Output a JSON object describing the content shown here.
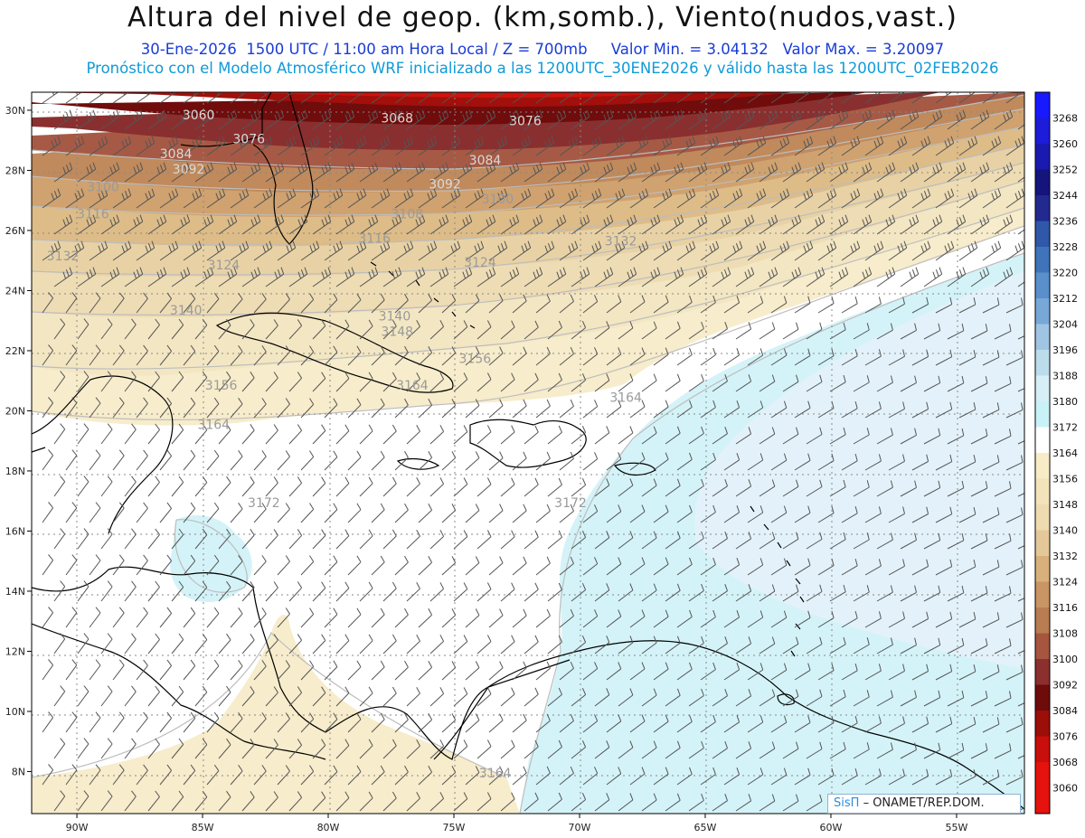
{
  "header": {
    "title": "Altura del nivel de geop. (km,somb.), Viento(nudos,vast.)",
    "line1_left": "30-Ene-2026  1500 UTC / 11:00 am Hora Local / Z = 700mb",
    "line1_min": "Valor Min. = 3.04132",
    "line1_max": "Valor Max. = 3.20097",
    "line2": "Pronóstico con el Modelo Atmosférico WRF inicializado a las 1200UTC_30ENE2026 y válido hasta las  1200UTC_02FEB2026"
  },
  "map": {
    "lon_ticks": [
      "90W",
      "85W",
      "80W",
      "75W",
      "70W",
      "65W",
      "60W",
      "55W"
    ],
    "lat_ticks": [
      "30N",
      "28N",
      "26N",
      "24N",
      "22N",
      "20N",
      "18N",
      "16N",
      "14N",
      "12N",
      "10N",
      "8N"
    ],
    "contour_labels": [
      {
        "text": "3060",
        "lon": -85.8,
        "lat": 29.7
      },
      {
        "text": "3068",
        "lon": -77.9,
        "lat": 29.6
      },
      {
        "text": "3076",
        "lon": -72.8,
        "lat": 29.5
      },
      {
        "text": "3076",
        "lon": -83.8,
        "lat": 28.9
      },
      {
        "text": "3084",
        "lon": -86.7,
        "lat": 28.4
      },
      {
        "text": "3084",
        "lon": -74.4,
        "lat": 28.2
      },
      {
        "text": "3092",
        "lon": -86.2,
        "lat": 27.9
      },
      {
        "text": "3092",
        "lon": -76.0,
        "lat": 27.4
      },
      {
        "text": "3100",
        "lon": -89.6,
        "lat": 27.3
      },
      {
        "text": "3100",
        "lon": -73.9,
        "lat": 26.9
      },
      {
        "text": "3108",
        "lon": -77.5,
        "lat": 26.4
      },
      {
        "text": "3116",
        "lon": -90.0,
        "lat": 26.4
      },
      {
        "text": "3116",
        "lon": -78.8,
        "lat": 25.6
      },
      {
        "text": "3132",
        "lon": -91.2,
        "lat": 25.0
      },
      {
        "text": "3124",
        "lon": -84.8,
        "lat": 24.7
      },
      {
        "text": "3124",
        "lon": -74.6,
        "lat": 24.8
      },
      {
        "text": "3132",
        "lon": -69.0,
        "lat": 25.5
      },
      {
        "text": "3140",
        "lon": -86.3,
        "lat": 23.2
      },
      {
        "text": "3140",
        "lon": -78.0,
        "lat": 23.0
      },
      {
        "text": "3148",
        "lon": -77.9,
        "lat": 22.5
      },
      {
        "text": "3156",
        "lon": -74.8,
        "lat": 21.6
      },
      {
        "text": "3156",
        "lon": -84.9,
        "lat": 20.7
      },
      {
        "text": "3164",
        "lon": -77.3,
        "lat": 20.7
      },
      {
        "text": "3164",
        "lon": -68.8,
        "lat": 20.3
      },
      {
        "text": "3164",
        "lon": -85.2,
        "lat": 19.4
      },
      {
        "text": "3172",
        "lon": -83.2,
        "lat": 16.8
      },
      {
        "text": "3172",
        "lon": -71.0,
        "lat": 16.8
      },
      {
        "text": "3164",
        "lon": -74.0,
        "lat": 7.8
      }
    ]
  },
  "colorbar": {
    "levels": [
      "3268",
      "3260",
      "3252",
      "3244",
      "3236",
      "3228",
      "3220",
      "3212",
      "3204",
      "3196",
      "3188",
      "3180",
      "3172",
      "3164",
      "3156",
      "3148",
      "3140",
      "3132",
      "3124",
      "3116",
      "3108",
      "3100",
      "3092",
      "3084",
      "3076",
      "3068",
      "3060"
    ],
    "colors": [
      "#1919ff",
      "#1c1cd9",
      "#1a1ab0",
      "#14147c",
      "#22298f",
      "#2f58a8",
      "#3f74bb",
      "#5a8fcb",
      "#78a8d7",
      "#9fc5e3",
      "#bcdcec",
      "#d6eef5",
      "#c8f2f7",
      "#ffffff",
      "#f7ecc6",
      "#f2e3ba",
      "#eedbb0",
      "#e4c89a",
      "#d8b07c",
      "#c99564",
      "#b97d52",
      "#a6553f",
      "#8c2f2f",
      "#6e0b0b",
      "#9c0e08",
      "#c80f0b",
      "#e5120d"
    ]
  },
  "credit": {
    "brand": "SisΠ",
    "org": "– ONAMET/REP.DOM."
  }
}
